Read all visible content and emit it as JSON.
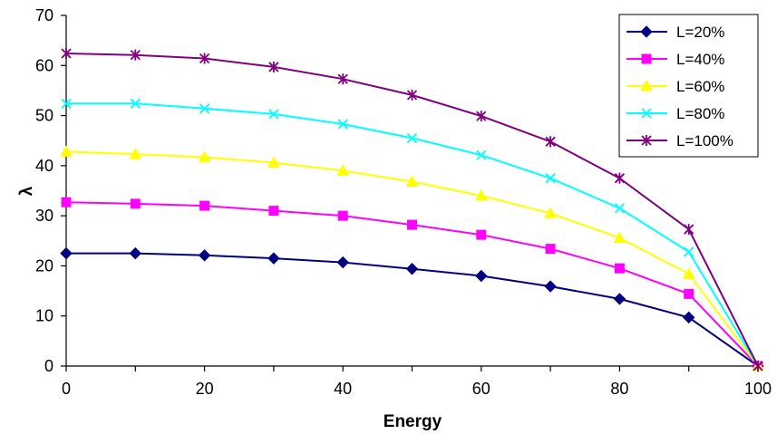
{
  "chart_data": {
    "type": "line",
    "title": "",
    "xlabel": "Energy",
    "ylabel": "λ",
    "xlim": [
      0,
      100
    ],
    "ylim": [
      0,
      70
    ],
    "x_ticks": [
      0,
      20,
      40,
      60,
      80,
      100
    ],
    "y_ticks": [
      0,
      10,
      20,
      30,
      40,
      50,
      60,
      70
    ],
    "grid": false,
    "legend_position": "top-right",
    "x": [
      0,
      10,
      20,
      30,
      40,
      50,
      60,
      70,
      80,
      90,
      100
    ],
    "series": [
      {
        "name": "L=20%",
        "color": "#000080",
        "marker": "diamond",
        "values": [
          22.5,
          22.5,
          22.1,
          21.5,
          20.7,
          19.4,
          18.0,
          15.9,
          13.4,
          9.7,
          0
        ]
      },
      {
        "name": "L=40%",
        "color": "#ff00ff",
        "marker": "square",
        "values": [
          32.7,
          32.4,
          32.0,
          31.0,
          30.0,
          28.2,
          26.2,
          23.4,
          19.5,
          14.4,
          0
        ]
      },
      {
        "name": "L=60%",
        "color": "#ffff00",
        "marker": "triangle",
        "values": [
          42.8,
          42.3,
          41.7,
          40.6,
          39.0,
          36.8,
          34.0,
          30.5,
          25.6,
          18.4,
          0
        ]
      },
      {
        "name": "L=80%",
        "color": "#00ffff",
        "marker": "x",
        "values": [
          52.4,
          52.4,
          51.4,
          50.3,
          48.3,
          45.5,
          42.1,
          37.5,
          31.5,
          22.8,
          0
        ]
      },
      {
        "name": "L=100%",
        "color": "#800080",
        "marker": "star",
        "values": [
          62.4,
          62.1,
          61.4,
          59.7,
          57.3,
          54.1,
          49.9,
          44.8,
          37.5,
          27.3,
          0
        ]
      }
    ]
  }
}
